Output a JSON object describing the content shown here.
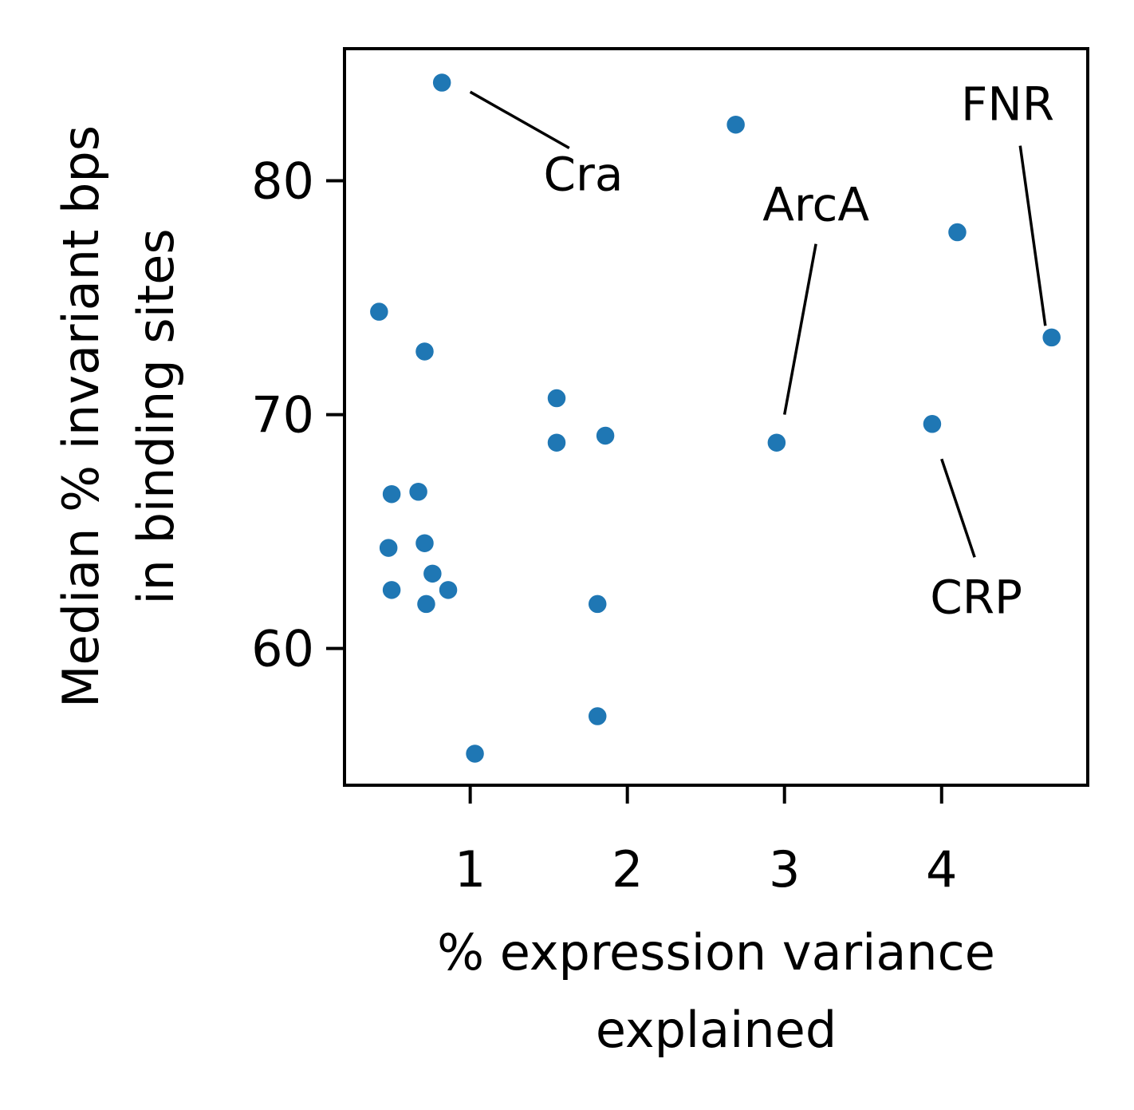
{
  "chart_data": {
    "type": "scatter",
    "xlabel_lines": [
      "% expression variance",
      "explained"
    ],
    "ylabel_lines": [
      "Median % invariant bps",
      "in binding sites"
    ],
    "xlim": [
      0.2,
      4.93
    ],
    "ylim": [
      54.15,
      85.65
    ],
    "xticks": [
      1,
      2,
      3,
      4
    ],
    "yticks": [
      60,
      70,
      80
    ],
    "xtick_labels": [
      "1",
      "2",
      "3",
      "4"
    ],
    "ytick_labels": [
      "60",
      "70",
      "80"
    ],
    "marker_color": "#1f77b4",
    "grid": false,
    "points": [
      {
        "x": 0.82,
        "y": 84.2
      },
      {
        "x": 2.69,
        "y": 82.4
      },
      {
        "x": 4.1,
        "y": 77.8
      },
      {
        "x": 4.7,
        "y": 73.3
      },
      {
        "x": 0.42,
        "y": 74.4
      },
      {
        "x": 0.71,
        "y": 72.7
      },
      {
        "x": 1.55,
        "y": 70.7
      },
      {
        "x": 1.55,
        "y": 68.8
      },
      {
        "x": 1.86,
        "y": 69.1
      },
      {
        "x": 2.95,
        "y": 68.8
      },
      {
        "x": 3.94,
        "y": 69.6
      },
      {
        "x": 0.5,
        "y": 66.6
      },
      {
        "x": 0.67,
        "y": 66.7
      },
      {
        "x": 0.48,
        "y": 64.3
      },
      {
        "x": 0.71,
        "y": 64.5
      },
      {
        "x": 0.76,
        "y": 63.2
      },
      {
        "x": 0.5,
        "y": 62.5
      },
      {
        "x": 0.72,
        "y": 61.9
      },
      {
        "x": 0.86,
        "y": 62.5
      },
      {
        "x": 1.81,
        "y": 61.9
      },
      {
        "x": 1.81,
        "y": 57.1
      },
      {
        "x": 1.03,
        "y": 55.5
      }
    ],
    "annotations": [
      {
        "text": "Cra",
        "point_index": 0,
        "text_x": 1.72,
        "text_y": 79.6,
        "anchor": "middle",
        "line_from": [
          1.0,
          83.8
        ],
        "line_to": [
          1.63,
          81.4
        ]
      },
      {
        "text": "ArcA",
        "point_index": 9,
        "text_x": 3.2,
        "text_y": 78.3,
        "anchor": "middle",
        "line_from": [
          3.0,
          70.0
        ],
        "line_to": [
          3.2,
          77.3
        ]
      },
      {
        "text": "FNR",
        "point_index": 3,
        "text_x": 4.42,
        "text_y": 82.6,
        "anchor": "middle",
        "line_from": [
          4.5,
          81.5
        ],
        "line_to": [
          4.66,
          73.8
        ]
      },
      {
        "text": "CRP",
        "point_index": 10,
        "text_x": 4.22,
        "text_y": 61.5,
        "anchor": "middle",
        "line_from": [
          4.21,
          63.9
        ],
        "line_to": [
          4.0,
          68.1
        ]
      }
    ]
  }
}
